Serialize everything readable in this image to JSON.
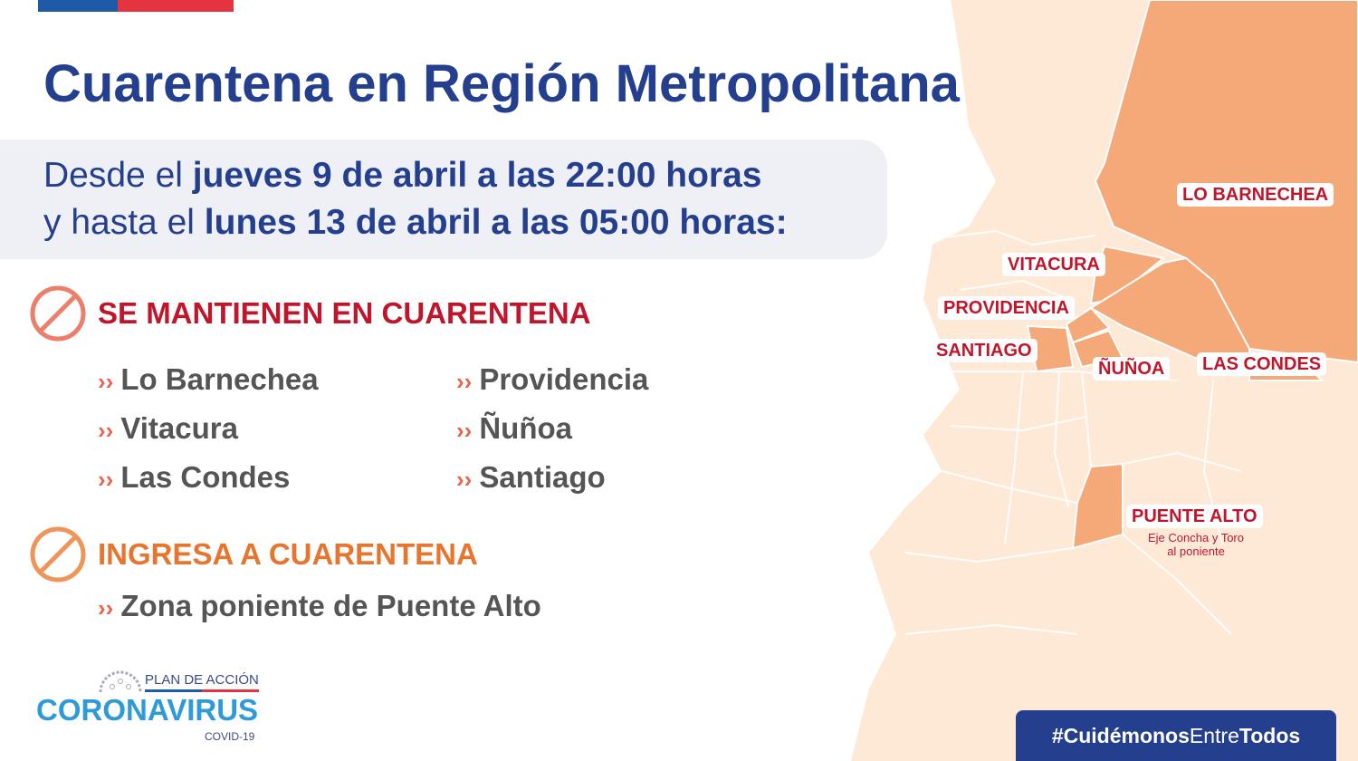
{
  "title": "Cuarentena en Región Metropolitana",
  "dates": {
    "line1_pre": "Desde el ",
    "line1_bold": "jueves 9 de abril a las 22:00 horas",
    "line2_pre": "y hasta el ",
    "line2_bold": "lunes 13 de abril a las 05:00 horas:"
  },
  "section1": {
    "title": "SE MANTIENEN EN CUARENTENA",
    "color": "#c0162c",
    "icon": "prohibited-icon",
    "items": [
      "Lo Barnechea",
      "Vitacura",
      "Las Condes",
      "Providencia",
      "Ñuñoa",
      "Santiago"
    ]
  },
  "section2": {
    "title": "INGRESA A CUARENTENA",
    "color": "#e8752e",
    "icon": "prohibited-icon",
    "items": [
      "Zona poniente de Puente Alto"
    ]
  },
  "bullet": "››",
  "map": {
    "labels": [
      "LO BARNECHEA",
      "VITACURA",
      "PROVIDENCIA",
      "SANTIAGO",
      "ÑUÑOA",
      "LAS CONDES",
      "PUENTE ALTO"
    ],
    "puente_alto_note": [
      "Eje Concha y Toro",
      "al poniente"
    ],
    "colors": {
      "base": "#fde9d6",
      "quarantine": "#f5a878",
      "border": "#ffffff",
      "label": "#c0162c"
    }
  },
  "logo": {
    "plan": "PLAN DE ACCIÓN",
    "name": "CORONAVIRUS",
    "sub": "COVID-19"
  },
  "hashtag": {
    "pre": "#Cuidémonos",
    "mid": "Entre",
    "post": "Todos"
  }
}
